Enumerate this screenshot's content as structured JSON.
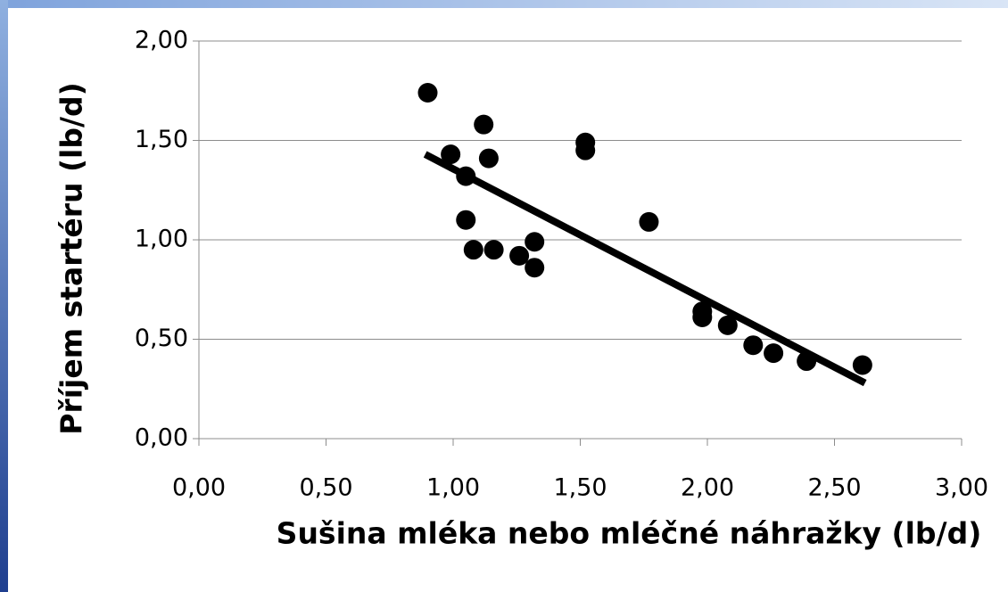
{
  "chart_data": {
    "type": "scatter",
    "xlabel": "Sušina mléka nebo mléčné náhražky (lb/d)",
    "ylabel": "Příjem startéru (lb/d)",
    "series": [
      {
        "color": "#000000",
        "x": [
          0.9,
          0.99,
          1.12,
          1.14,
          1.05,
          1.05,
          1.08,
          1.16,
          1.26,
          1.32,
          1.32,
          1.52,
          1.52,
          1.77,
          1.98,
          1.98,
          2.08,
          2.18,
          2.26,
          2.39,
          2.61
        ],
        "values": [
          1.74,
          1.43,
          1.58,
          1.41,
          1.32,
          1.1,
          0.95,
          0.95,
          0.92,
          0.99,
          0.86,
          1.49,
          1.45,
          1.09,
          0.64,
          0.61,
          0.57,
          0.47,
          0.43,
          0.39,
          0.37
        ]
      }
    ],
    "trendline": {
      "color": "#000000",
      "x": [
        0.89,
        2.62
      ],
      "y": [
        1.43,
        0.28
      ]
    },
    "xlim": [
      0,
      3
    ],
    "xticks": [
      {
        "value": 0,
        "label": "0,00"
      },
      {
        "value": 0.5,
        "label": "0,50"
      },
      {
        "value": 1,
        "label": "1,00"
      },
      {
        "value": 1.5,
        "label": "1,50"
      },
      {
        "value": 2,
        "label": "2,00"
      },
      {
        "value": 2.5,
        "label": "2,50"
      },
      {
        "value": 3,
        "label": "3,00"
      }
    ],
    "ylim": [
      0,
      2
    ],
    "yticks": [
      {
        "value": 0,
        "label": "0,00"
      },
      {
        "value": 0.5,
        "label": "0,50"
      },
      {
        "value": 1,
        "label": "1,00"
      },
      {
        "value": 1.5,
        "label": "1,50"
      },
      {
        "value": 2,
        "label": "2,00"
      }
    ],
    "grid": true
  }
}
